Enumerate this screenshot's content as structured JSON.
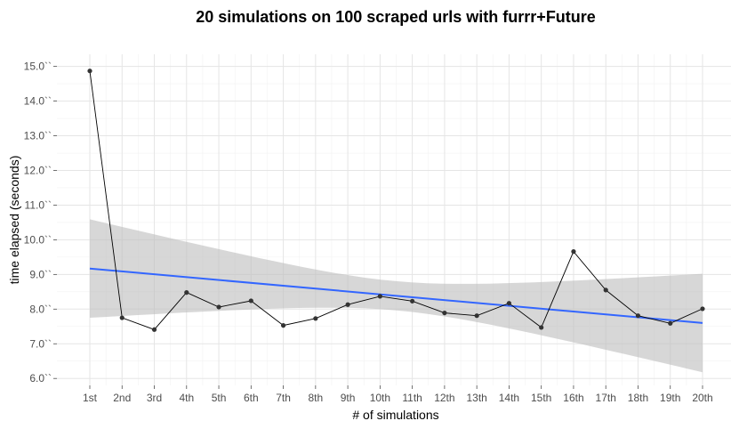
{
  "chart_data": {
    "type": "line",
    "title": "20 simulations on 100 scraped urls with furrr+Future",
    "xlabel": "# of simulations",
    "ylabel": "time elapsed (seconds)",
    "categories": [
      "1st",
      "2nd",
      "3rd",
      "4th",
      "5th",
      "6th",
      "7th",
      "8th",
      "9th",
      "10th",
      "11th",
      "12th",
      "13th",
      "14th",
      "15th",
      "16th",
      "17th",
      "18th",
      "19th",
      "20th"
    ],
    "series": [
      {
        "values": [
          14.87,
          7.75,
          7.41,
          8.48,
          8.06,
          8.24,
          7.53,
          7.73,
          8.13,
          8.37,
          8.23,
          7.89,
          7.81,
          8.17,
          7.47,
          9.66,
          8.55,
          7.81,
          7.59,
          8.01
        ]
      }
    ],
    "trend": {
      "method": "linear fit",
      "start": 9.17,
      "end": 7.6,
      "ci_start": [
        7.76,
        10.6
      ],
      "ci_end": [
        6.21,
        9.02
      ]
    },
    "ylim": [
      5.8,
      15.35
    ],
    "yticks": [
      6,
      7,
      8,
      9,
      10,
      11,
      12,
      13,
      14,
      15
    ],
    "ytick_labels": [
      "6.0``",
      "7.0``",
      "8.0``",
      "9.0``",
      "10.0``",
      "11.0``",
      "12.0``",
      "13.0``",
      "14.0``",
      "15.0``"
    ],
    "grid": true,
    "colors": {
      "line": "#000000",
      "points": "#333333",
      "trend": "#3366ff",
      "ribbon": "#bdbdbd",
      "grid_major": "#e5e5e5",
      "grid_minor": "#f2f2f2"
    }
  }
}
